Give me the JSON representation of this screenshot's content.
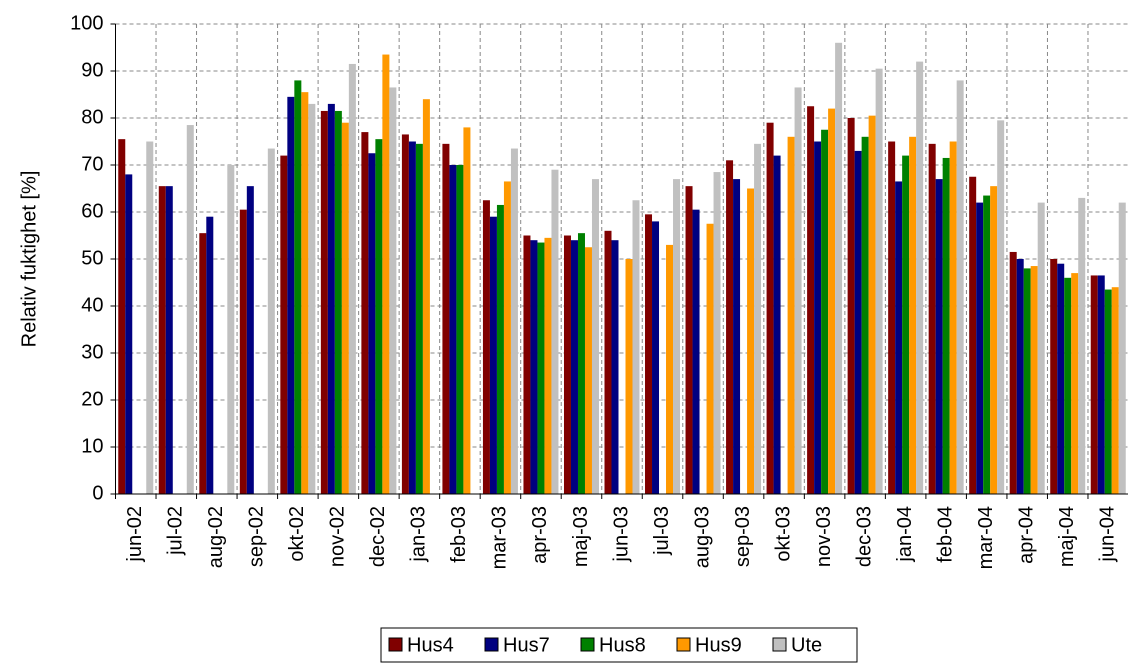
{
  "chart_data": {
    "type": "bar",
    "y_label": "Relativ fuktighet [%]",
    "categories": [
      "jun-02",
      "jul-02",
      "aug-02",
      "sep-02",
      "okt-02",
      "nov-02",
      "dec-02",
      "jan-03",
      "feb-03",
      "mar-03",
      "apr-03",
      "maj-03",
      "jun-03",
      "jul-03",
      "aug-03",
      "sep-03",
      "okt-03",
      "nov-03",
      "dec-03",
      "jan-04",
      "feb-04",
      "mar-04",
      "apr-04",
      "maj-04",
      "jun-04"
    ],
    "series": [
      {
        "name": "Hus4",
        "color": "#800000",
        "values": [
          75.5,
          65.5,
          55.5,
          60.5,
          72,
          81.5,
          77,
          76.5,
          74.5,
          62.5,
          55,
          55,
          56,
          59.5,
          65.5,
          71,
          79,
          82.5,
          80,
          75,
          74.5,
          67.5,
          51.5,
          50,
          46.5
        ]
      },
      {
        "name": "Hus7",
        "color": "#000080",
        "values": [
          68,
          65.5,
          59,
          65.5,
          84.5,
          83,
          72.5,
          75,
          70,
          59,
          54,
          54,
          54,
          58,
          60.5,
          67,
          72,
          75,
          73,
          66.5,
          67,
          62,
          50,
          49,
          46.5
        ]
      },
      {
        "name": "Hus8",
        "color": "#008000",
        "values": [
          null,
          null,
          null,
          null,
          88,
          81.5,
          75.5,
          74.5,
          70,
          61.5,
          53.5,
          55.5,
          null,
          null,
          null,
          null,
          null,
          77.5,
          76,
          72,
          71.5,
          63.5,
          48,
          46,
          43.5
        ]
      },
      {
        "name": "Hus9",
        "color": "#ff9900",
        "values": [
          null,
          null,
          null,
          null,
          85.5,
          79,
          93.5,
          84,
          78,
          66.5,
          54.5,
          52.5,
          50,
          53,
          57.5,
          65,
          76,
          82,
          80.5,
          76,
          75,
          65.5,
          48.5,
          47,
          44
        ]
      },
      {
        "name": "Ute",
        "color": "#c0c0c0",
        "values": [
          75,
          78.5,
          70,
          73.5,
          83,
          91.5,
          86.5,
          null,
          null,
          73.5,
          69,
          67,
          62.5,
          67,
          68.5,
          74.5,
          86.5,
          96,
          90.5,
          92,
          88,
          79.5,
          62,
          63,
          62
        ]
      }
    ],
    "ylim": [
      0,
      100
    ],
    "yticks": [
      0,
      10,
      20,
      30,
      40,
      50,
      60,
      70,
      80,
      90,
      100
    ],
    "grid": true
  }
}
